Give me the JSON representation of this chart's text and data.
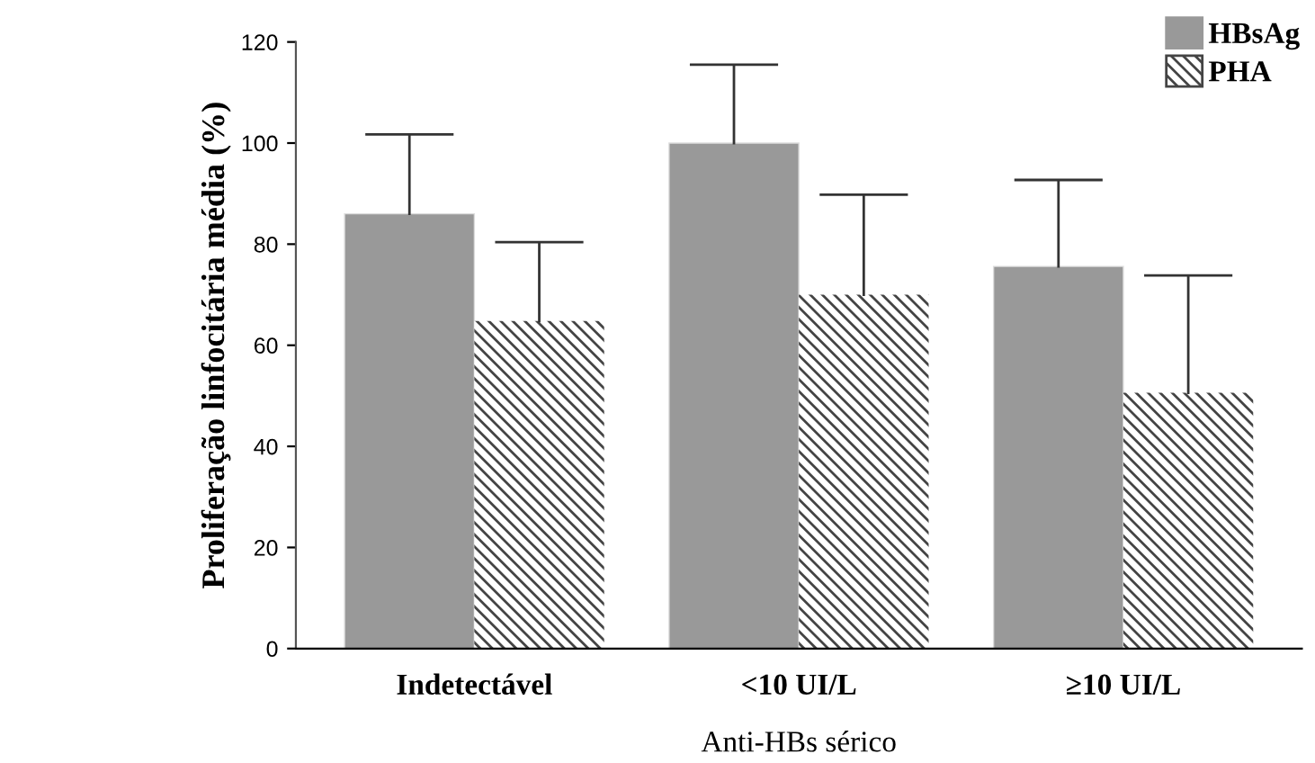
{
  "chart_data": {
    "type": "bar",
    "xlabel": "Anti-HBs sérico",
    "ylabel": "Proliferação linfocitária média (%)",
    "categories": [
      "Indetectável",
      "<10 UI/L",
      "≥10 UI/L"
    ],
    "series": [
      {
        "name": "HBsAg",
        "color": "#999999",
        "values": [
          86,
          100,
          75.6
        ],
        "errors": [
          [
            86,
            101.7
          ],
          [
            100,
            115.5
          ],
          [
            75.6,
            92.7
          ]
        ]
      },
      {
        "name": "PHA",
        "color": "#444444",
        "values": [
          64.8,
          70,
          50.6
        ],
        "errors": [
          [
            64.8,
            80.4
          ],
          [
            70,
            89.8
          ],
          [
            50.6,
            73.8
          ]
        ]
      }
    ],
    "ylim": [
      0,
      120
    ],
    "yticks": [
      0,
      20,
      40,
      60,
      80,
      100,
      120
    ],
    "grid": false,
    "legend": "top right"
  }
}
